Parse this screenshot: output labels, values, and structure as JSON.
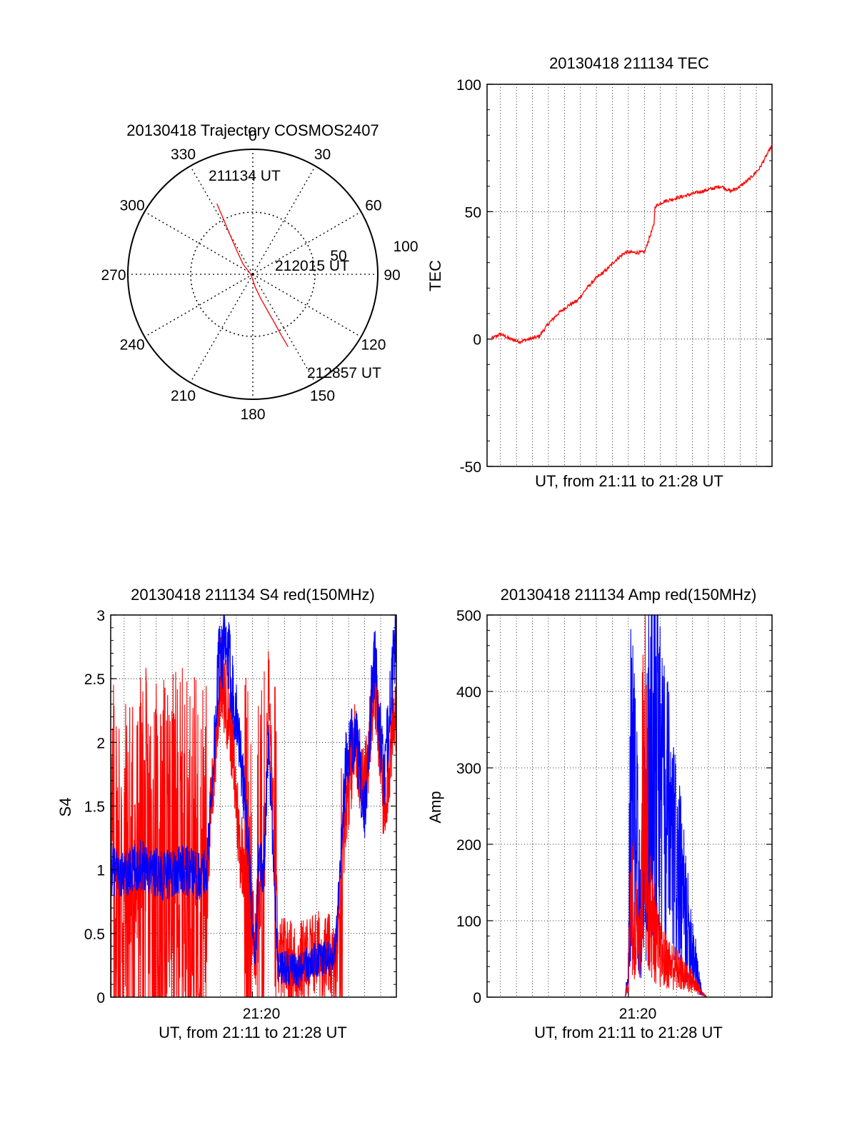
{
  "colors": {
    "red_series": "#ff0000",
    "blue_series": "#0000ff",
    "axes": "#000000",
    "grid": "#000000"
  },
  "chart_data": [
    {
      "id": "trajectory",
      "type": "polar",
      "title": "20130418 Trajectory COSMOS2407",
      "azimuth_ticks": [
        "0",
        "30",
        "60",
        "90",
        "120",
        "150",
        "180",
        "210",
        "240",
        "270",
        "300",
        "330"
      ],
      "radial_ticks": [
        "50",
        "100"
      ],
      "radial_range": [
        100,
        0
      ],
      "series": [
        {
          "color": "red",
          "points": [
            {
              "azimuth_deg": 333,
              "elevation_deg": 33
            },
            {
              "azimuth_deg": 332,
              "elevation_deg": 45
            },
            {
              "azimuth_deg": 330,
              "elevation_deg": 57
            },
            {
              "azimuth_deg": 326,
              "elevation_deg": 69
            },
            {
              "azimuth_deg": 316,
              "elevation_deg": 80
            },
            {
              "azimuth_deg": 288,
              "elevation_deg": 88
            },
            {
              "azimuth_deg": 200,
              "elevation_deg": 88
            },
            {
              "azimuth_deg": 170,
              "elevation_deg": 81
            },
            {
              "azimuth_deg": 162,
              "elevation_deg": 72
            },
            {
              "azimuth_deg": 158,
              "elevation_deg": 62
            },
            {
              "azimuth_deg": 156,
              "elevation_deg": 52
            },
            {
              "azimuth_deg": 155,
              "elevation_deg": 42
            },
            {
              "azimuth_deg": 154,
              "elevation_deg": 32
            }
          ]
        }
      ],
      "annotations": [
        {
          "text": "211134 UT",
          "azimuth_deg": 333,
          "elevation_deg": 33
        },
        {
          "text": "212015 UT",
          "azimuth_deg": 72,
          "elevation_deg": 76
        },
        {
          "text": "212857 UT",
          "azimuth_deg": 154,
          "elevation_deg": 32
        }
      ]
    },
    {
      "id": "tec",
      "type": "line",
      "title": "20130418 211134 TEC",
      "xlabel": "UT, from 21:11 to 21:28 UT",
      "ylabel": "TEC",
      "xlim": [
        21.186,
        21.483
      ],
      "ylim": [
        -50,
        100
      ],
      "yticks": [
        -50,
        0,
        50,
        100
      ],
      "xgrid_minutes": [
        21.2,
        21.2167,
        21.2333,
        21.25,
        21.2667,
        21.2833,
        21.3,
        21.3167,
        21.3333,
        21.35,
        21.3667,
        21.3833,
        21.4,
        21.4167,
        21.4333,
        21.45,
        21.4667
      ],
      "series": [
        {
          "color": "red",
          "x": [
            21.19,
            21.2,
            21.21,
            21.22,
            21.23,
            21.24,
            21.25,
            21.26,
            21.27,
            21.28,
            21.29,
            21.3,
            21.31,
            21.32,
            21.33,
            21.34,
            21.35,
            21.36,
            21.361,
            21.37,
            21.38,
            21.39,
            21.4,
            21.41,
            21.42,
            21.43,
            21.44,
            21.45,
            21.46,
            21.47,
            21.483
          ],
          "y": [
            0,
            2,
            0,
            -1,
            0,
            1,
            6,
            10,
            13,
            15,
            20,
            24,
            27,
            31,
            34,
            34,
            34,
            45,
            52,
            54,
            55,
            56,
            57,
            58,
            59,
            60,
            58,
            60,
            63,
            67,
            76
          ]
        }
      ]
    },
    {
      "id": "s4",
      "type": "line",
      "title": "20130418 211134 S4 red(150MHz)",
      "xlabel": "UT, from 21:11 to 21:28 UT",
      "ylabel": "S4",
      "xlim": [
        21.186,
        21.483
      ],
      "ylim": [
        0,
        3
      ],
      "yticks": [
        0,
        0.5,
        1,
        1.5,
        2,
        2.5,
        3
      ],
      "xtick_labels": [
        "21:20"
      ],
      "xtick_values": [
        21.3333
      ],
      "series": [
        {
          "color": "red",
          "x": [
            21.186,
            21.2,
            21.22,
            21.24,
            21.26,
            21.28,
            21.286,
            21.3,
            21.31,
            21.32,
            21.33,
            21.336,
            21.34,
            21.345,
            21.35,
            21.36,
            21.38,
            21.4,
            21.415,
            21.42,
            21.43,
            21.44,
            21.45,
            21.46,
            21.47,
            21.483
          ],
          "y": [
            1.0,
            0.8,
            1.0,
            0.9,
            1.0,
            0.9,
            1.0,
            2.5,
            2.2,
            1.2,
            1.0,
            0.3,
            1.0,
            0.8,
            2.5,
            0.3,
            0.25,
            0.35,
            0.3,
            0.2,
            1.5,
            2.0,
            1.6,
            2.5,
            1.5,
            2.3
          ]
        },
        {
          "color": "blue",
          "x": [
            21.186,
            21.2,
            21.22,
            21.24,
            21.26,
            21.28,
            21.286,
            21.3,
            21.31,
            21.32,
            21.33,
            21.336,
            21.34,
            21.345,
            21.35,
            21.36,
            21.38,
            21.4,
            21.415,
            21.42,
            21.43,
            21.44,
            21.45,
            21.46,
            21.47,
            21.483
          ],
          "y": [
            1.0,
            0.95,
            1.05,
            0.95,
            1.0,
            0.95,
            1.0,
            2.8,
            2.6,
            2.0,
            1.1,
            0.2,
            1.1,
            1.0,
            2.0,
            0.25,
            0.2,
            0.3,
            0.3,
            0.4,
            1.8,
            2.1,
            1.4,
            2.7,
            1.7,
            2.9
          ]
        }
      ]
    },
    {
      "id": "amp",
      "type": "line",
      "title": "20130418 211134 Amp red(150MHz)",
      "xlabel": "UT, from 21:11 to 21:28 UT",
      "ylabel": "Amp",
      "xlim": [
        21.186,
        21.483
      ],
      "ylim": [
        0,
        500
      ],
      "yticks": [
        0,
        100,
        200,
        300,
        400,
        500
      ],
      "xtick_labels": [
        "21:20"
      ],
      "xtick_values": [
        21.3333
      ],
      "series": [
        {
          "color": "blue",
          "x": [
            21.186,
            21.33,
            21.333,
            21.336,
            21.34,
            21.345,
            21.35,
            21.355,
            21.36,
            21.365,
            21.37,
            21.375,
            21.38,
            21.385,
            21.39,
            21.395,
            21.4,
            21.405,
            21.41,
            21.415,
            21.483
          ],
          "y": [
            0,
            0,
            30,
            280,
            250,
            120,
            200,
            280,
            400,
            300,
            250,
            220,
            190,
            160,
            130,
            90,
            70,
            30,
            5,
            0,
            0
          ]
        },
        {
          "color": "red",
          "x": [
            21.186,
            21.33,
            21.333,
            21.336,
            21.34,
            21.345,
            21.35,
            21.355,
            21.36,
            21.365,
            21.37,
            21.375,
            21.38,
            21.385,
            21.39,
            21.395,
            21.4,
            21.405,
            21.41,
            21.415,
            21.483
          ],
          "y": [
            0,
            0,
            20,
            120,
            100,
            60,
            380,
            110,
            90,
            60,
            50,
            45,
            40,
            35,
            30,
            25,
            20,
            15,
            5,
            0,
            0
          ]
        }
      ]
    }
  ]
}
